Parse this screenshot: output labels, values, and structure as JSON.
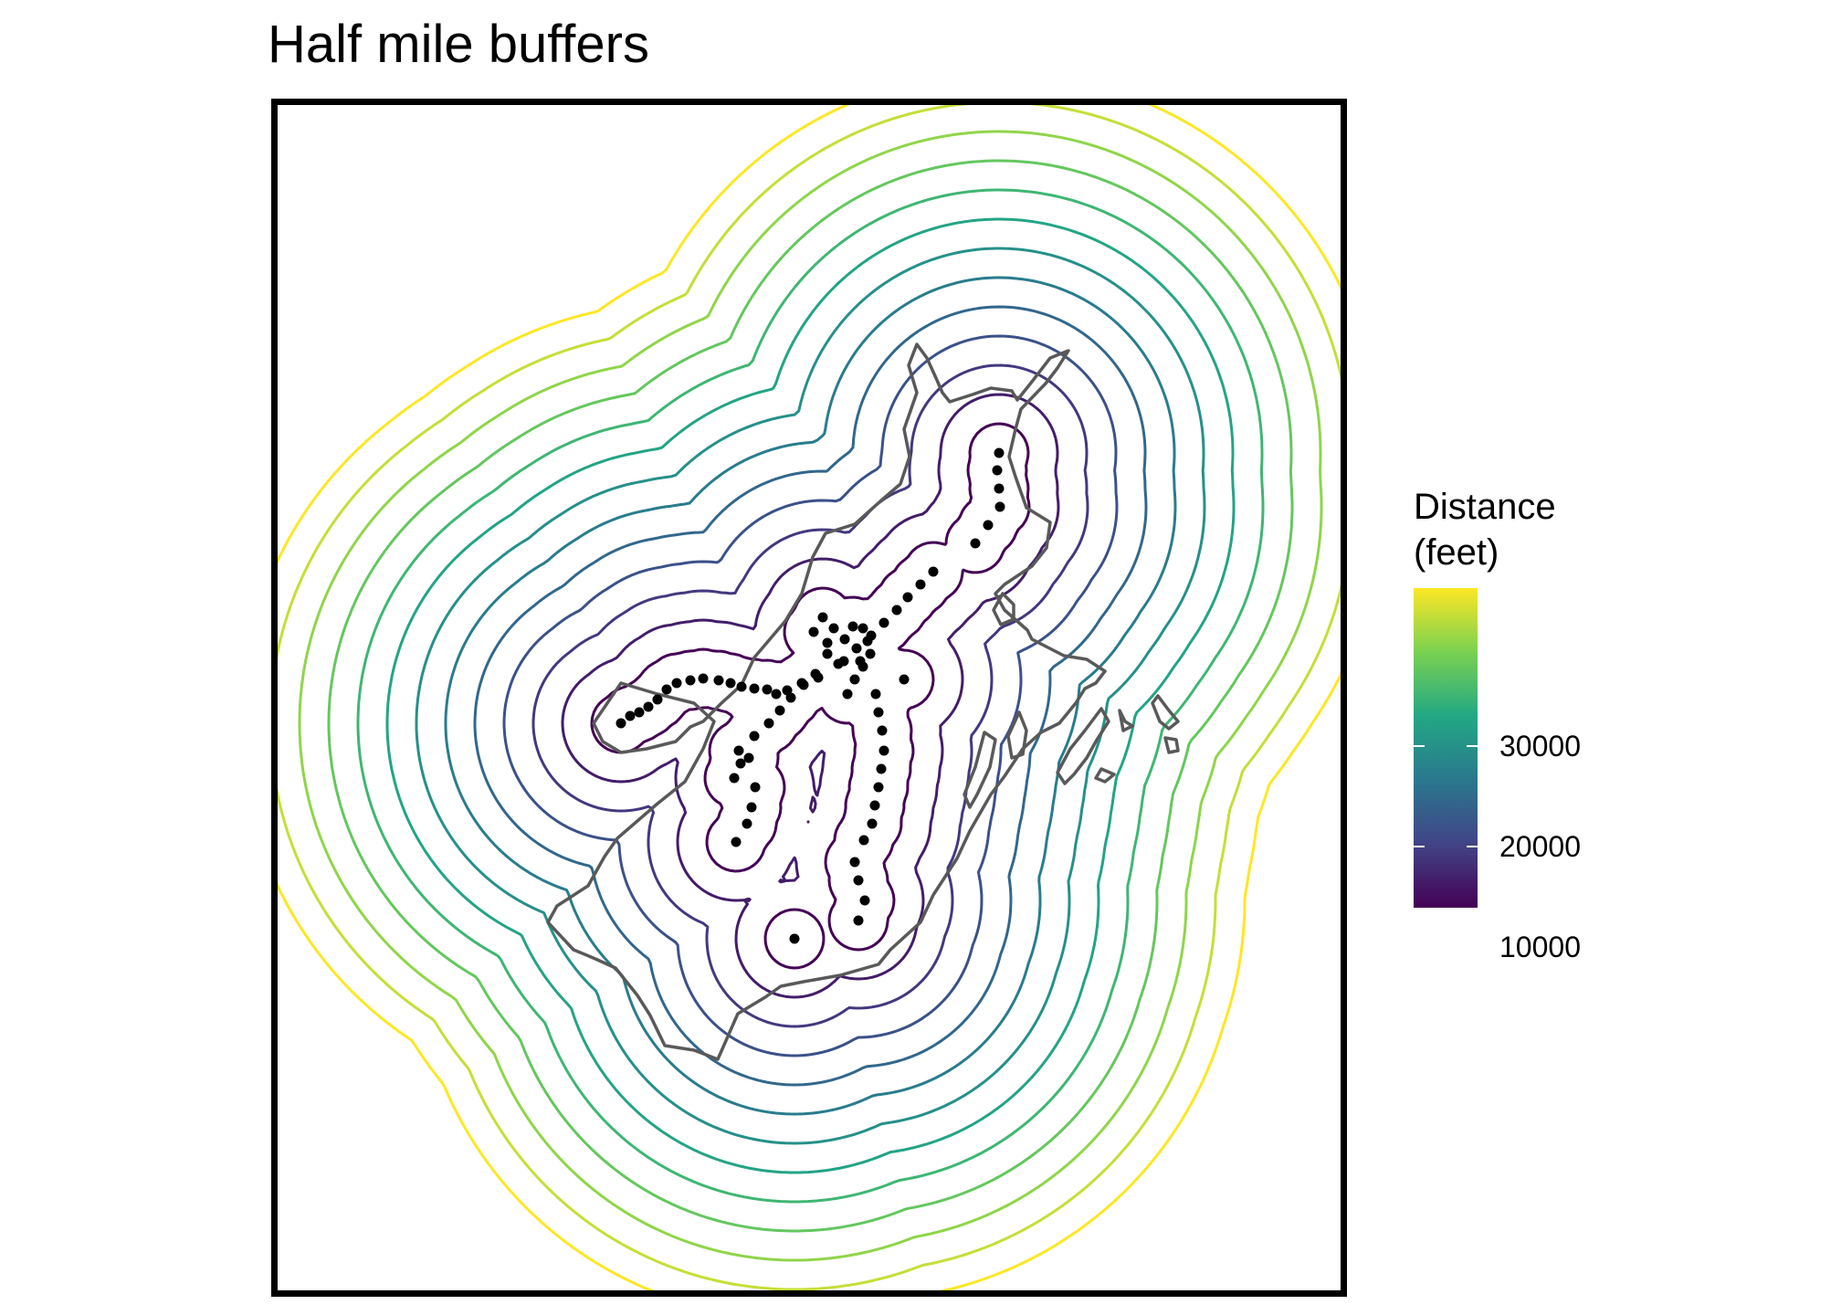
{
  "title": "Half mile buffers",
  "legend": {
    "title_lines": [
      "Distance",
      "(feet)"
    ],
    "ticks": [
      {
        "value": 30000,
        "label": "30000"
      },
      {
        "value": 20000,
        "label": "20000"
      },
      {
        "value": 10000,
        "label": "10000"
      }
    ],
    "range": [
      2640,
      34320
    ],
    "palette": [
      "#440154",
      "#414487",
      "#2a788e",
      "#22a884",
      "#7ad151",
      "#fde725"
    ]
  },
  "chart_data": {
    "type": "contour",
    "title": "Half mile buffers",
    "legend_placement": "right",
    "buffer_distances_feet": [
      2640,
      5280,
      7920,
      10560,
      13200,
      15840,
      18480,
      21120,
      23760,
      26400,
      29040,
      31680,
      34320
    ],
    "boundary_color": "#595959",
    "point_color": "#000000"
  }
}
